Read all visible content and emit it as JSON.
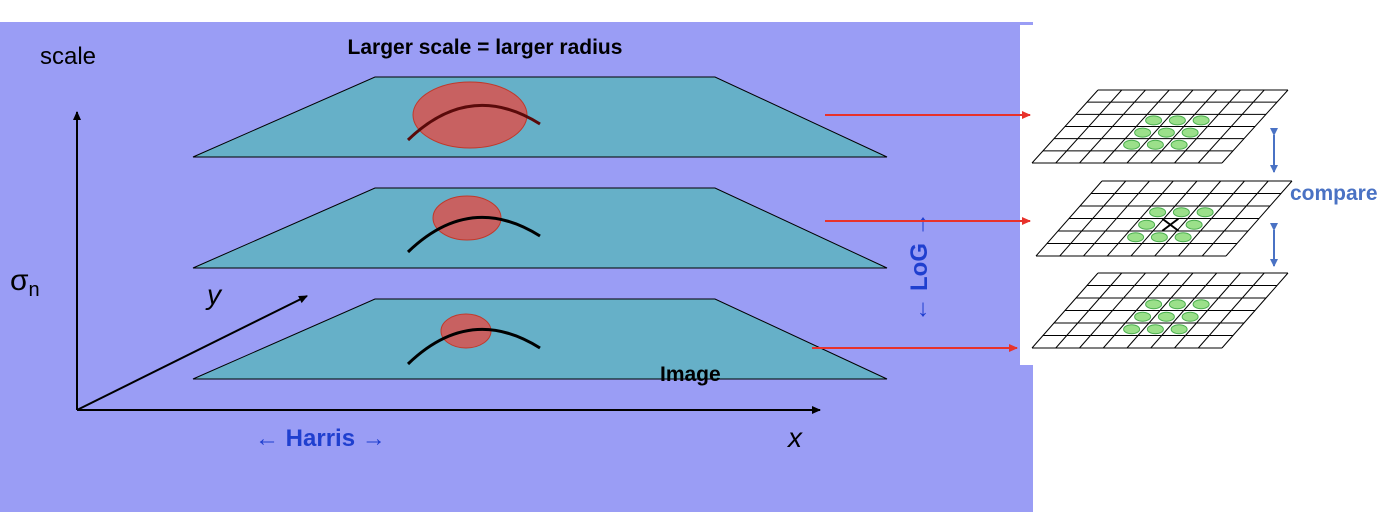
{
  "title": "Larger scale = larger radius",
  "axes": {
    "vertical_label": "scale",
    "sigma_label": "σ",
    "sigma_subscript": "n",
    "y_label": "y",
    "x_label": "x"
  },
  "labels": {
    "harris": "← Harris →",
    "log": "← LoG →",
    "image": "Image",
    "compare": "compare"
  },
  "layers": [
    {
      "name": "top",
      "circle_radius": "large"
    },
    {
      "name": "middle",
      "circle_radius": "medium"
    },
    {
      "name": "bottom",
      "circle_radius": "small"
    }
  ],
  "grid": {
    "rows": 6,
    "cols": 8
  },
  "colors": {
    "background": "#9a9df5",
    "plane": "#66b0c8",
    "circle": "#d9534f",
    "arrow": "#e8322b",
    "label_blue": "#1f3fcf",
    "compare_blue": "#4a72c4",
    "dot": "#9be08a"
  }
}
